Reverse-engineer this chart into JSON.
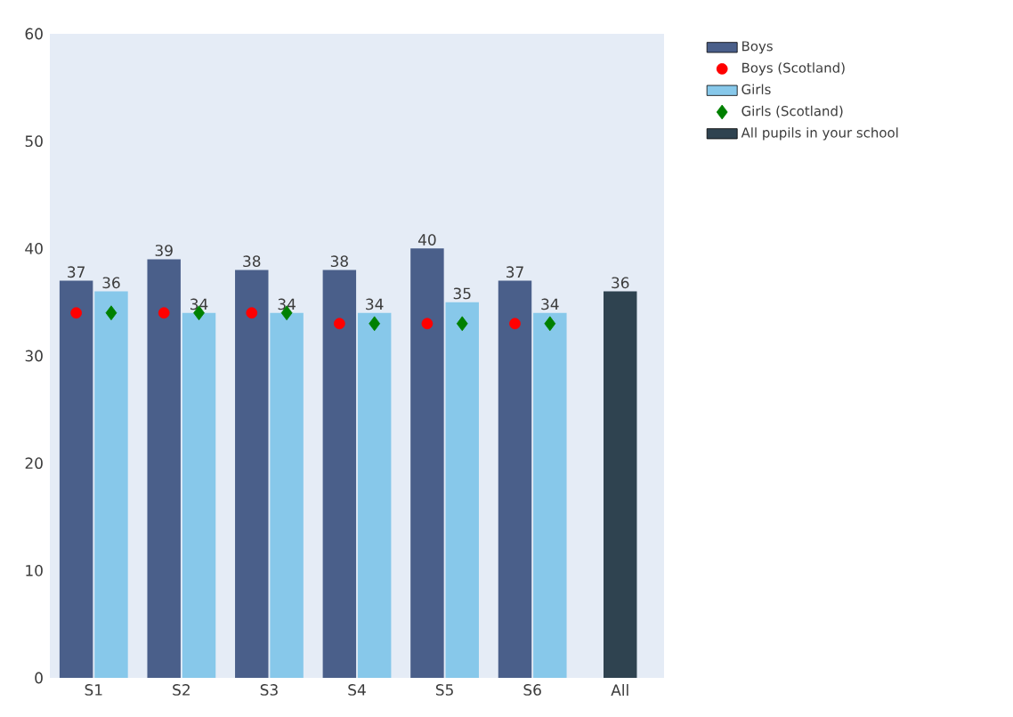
{
  "chart_data": {
    "type": "bar",
    "categories": [
      "S1",
      "S2",
      "S3",
      "S4",
      "S5",
      "S6",
      "All"
    ],
    "series": [
      {
        "name": "Boys",
        "color": "#4a5f8a",
        "values": [
          37,
          39,
          38,
          38,
          40,
          37,
          null
        ],
        "value_labels": [
          "37",
          "39",
          "38",
          "38",
          "40",
          "37",
          null
        ]
      },
      {
        "name": "Boys (Scotland)",
        "type": "scatter",
        "marker": "circle",
        "color": "#ff0000",
        "values": [
          34,
          34,
          34,
          33,
          33,
          33,
          null
        ]
      },
      {
        "name": "Girls",
        "color": "#87c8ea",
        "values": [
          36,
          34,
          34,
          34,
          35,
          34,
          null
        ],
        "value_labels": [
          "36",
          "34",
          "34",
          "34",
          "35",
          "34",
          null
        ]
      },
      {
        "name": "Girls (Scotland)",
        "type": "scatter",
        "marker": "diamond",
        "color": "#008000",
        "values": [
          34,
          34,
          34,
          33,
          33,
          33,
          null
        ]
      },
      {
        "name": "All pupils in your school",
        "color": "#2f4350",
        "values": [
          null,
          null,
          null,
          null,
          null,
          null,
          36
        ],
        "value_labels": [
          null,
          null,
          null,
          null,
          null,
          null,
          "36"
        ]
      }
    ],
    "ylim": [
      0,
      60
    ],
    "yticks": [
      0,
      10,
      20,
      30,
      40,
      50,
      60
    ],
    "grid": false,
    "legend": "top right"
  }
}
